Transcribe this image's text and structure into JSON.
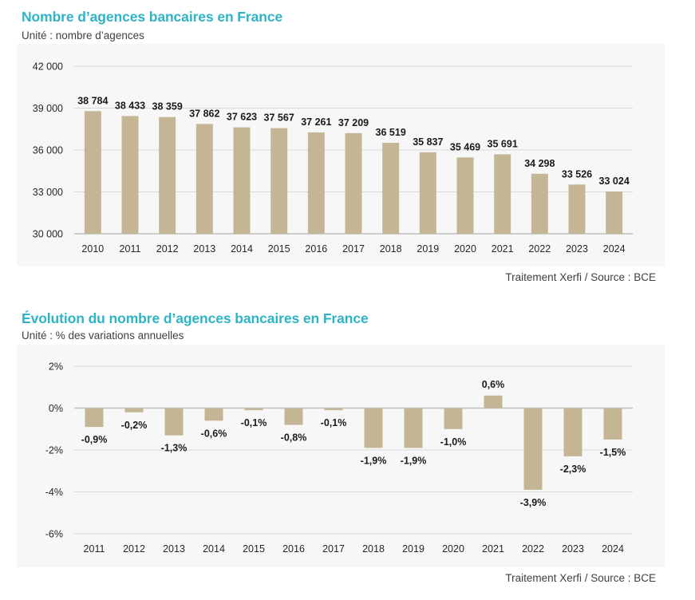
{
  "chart_data": [
    {
      "type": "bar",
      "title": "Nombre d’agences bancaires en France",
      "subtitle": "Unité : nombre d’agences",
      "source": "Traitement Xerfi / Source : BCE",
      "xlabel": "",
      "ylabel": "",
      "ylim": [
        30000,
        42000
      ],
      "yticks": [
        30000,
        33000,
        36000,
        39000,
        42000
      ],
      "ytick_labels": [
        "30 000",
        "33 000",
        "36 000",
        "39 000",
        "42 000"
      ],
      "grid": true,
      "categories": [
        "2010",
        "2011",
        "2012",
        "2013",
        "2014",
        "2015",
        "2016",
        "2017",
        "2018",
        "2019",
        "2020",
        "2021",
        "2022",
        "2023",
        "2024"
      ],
      "values": [
        38784,
        38433,
        38359,
        37862,
        37623,
        37567,
        37261,
        37209,
        36519,
        35837,
        35469,
        35691,
        34298,
        33526,
        33024
      ],
      "data_labels": [
        "38 784",
        "38 433",
        "38 359",
        "37 862",
        "37 623",
        "37 567",
        "37 261",
        "37 209",
        "36 519",
        "35 837",
        "35 469",
        "35 691",
        "34 298",
        "33 526",
        "33 024"
      ],
      "bar_color": "#c4b694"
    },
    {
      "type": "bar",
      "title": "Évolution du nombre d’agences bancaires en France",
      "subtitle": "Unité : % des variations annuelles",
      "source": "Traitement Xerfi / Source : BCE",
      "xlabel": "",
      "ylabel": "",
      "ylim": [
        -6,
        2
      ],
      "yticks": [
        -6,
        -4,
        -2,
        0,
        2
      ],
      "ytick_labels": [
        "-6%",
        "-4%",
        "-2%",
        "0%",
        "2%"
      ],
      "grid": true,
      "categories": [
        "2011",
        "2012",
        "2013",
        "2014",
        "2015",
        "2016",
        "2017",
        "2018",
        "2019",
        "2020",
        "2021",
        "2022",
        "2023",
        "2024"
      ],
      "values": [
        -0.9,
        -0.2,
        -1.3,
        -0.6,
        -0.1,
        -0.8,
        -0.1,
        -1.9,
        -1.9,
        -1.0,
        0.6,
        -3.9,
        -2.3,
        -1.5
      ],
      "data_labels": [
        "-0,9%",
        "-0,2%",
        "-1,3%",
        "-0,6%",
        "-0,1%",
        "-0,8%",
        "-0,1%",
        "-1,9%",
        "-1,9%",
        "-1,0%",
        "0,6%",
        "-3,9%",
        "-2,3%",
        "-1,5%"
      ],
      "bar_color": "#c4b694"
    }
  ]
}
